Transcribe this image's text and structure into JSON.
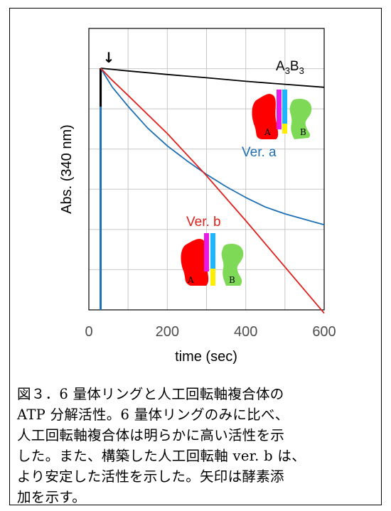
{
  "chart_data": {
    "type": "line",
    "xlabel": "time (sec)",
    "ylabel": "Abs. (340 nm)",
    "xlim": [
      0,
      600
    ],
    "xticks": [
      0,
      200,
      400,
      600
    ],
    "grid": true,
    "series": [
      {
        "name": "A3B3",
        "label_main": "A",
        "label_sub1": "3",
        "label_mid": "B",
        "label_sub2": "3",
        "color": "#000000",
        "x": [
          30,
          100,
          200,
          300,
          400,
          500,
          600
        ],
        "y": [
          1.0,
          0.99,
          0.977,
          0.965,
          0.952,
          0.941,
          0.93
        ]
      },
      {
        "name": "Ver. a",
        "color": "#1f6fb5",
        "x": [
          30,
          60,
          100,
          150,
          200,
          250,
          300,
          350,
          400,
          450,
          500,
          550,
          600
        ],
        "y": [
          1.0,
          0.93,
          0.86,
          0.78,
          0.715,
          0.66,
          0.61,
          0.565,
          0.525,
          0.49,
          0.465,
          0.445,
          0.425
        ]
      },
      {
        "name": "Ver. b",
        "color": "#e0201c",
        "x": [
          30,
          40,
          60,
          100,
          200,
          300,
          400,
          500,
          600
        ],
        "y": [
          1.0,
          0.985,
          0.955,
          0.9,
          0.76,
          0.605,
          0.44,
          0.27,
          0.1
        ]
      }
    ],
    "annotation_marker": "↓",
    "complex_letters": [
      "A",
      "B"
    ]
  },
  "caption": {
    "line1": "図３．6 量体リングと人工回転軸複合体の",
    "line2": "ATP 分解活性。6 量体リングのみに比べ、",
    "line3": "人工回転軸複合体は明らかに高い活性を示",
    "line4": "した。また、構築した人工回転軸 ver. b は、",
    "line5": "より安定した活性を示した。矢印は酵素添",
    "line6": "加を示す。"
  },
  "colors": {
    "black_series": "#000000",
    "blue_series": "#1f6fb5",
    "red_series": "#e0201c",
    "grid": "#c8c8c8",
    "subunit_A": "#ff0000",
    "subunit_B": "#7ed957",
    "shaft_magenta": "#e619e6",
    "shaft_blue": "#1fb4ff",
    "shaft_yellow": "#ffee00"
  }
}
